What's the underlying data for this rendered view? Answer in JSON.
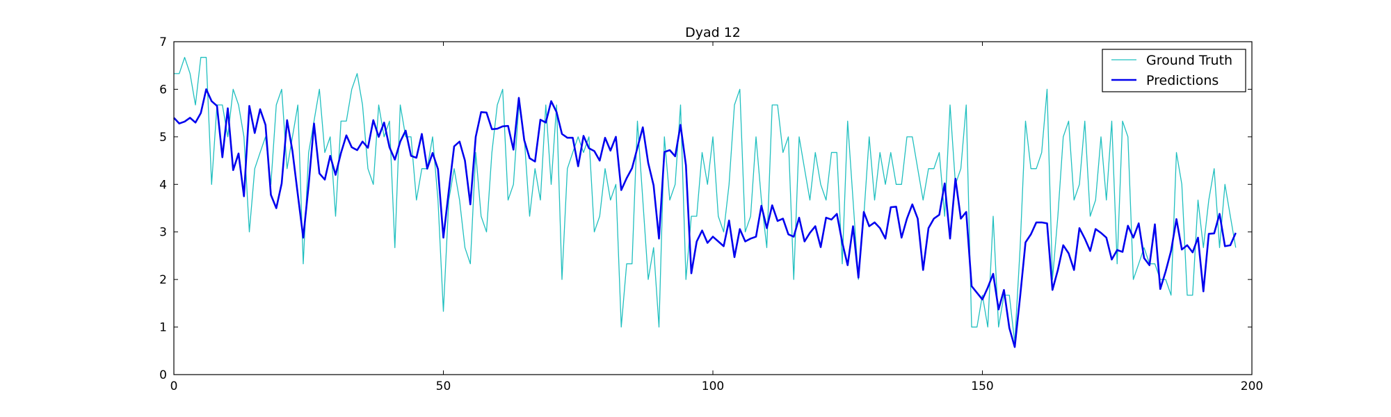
{
  "chart_data": {
    "type": "line",
    "title": "Dyad 12",
    "xlabel": "",
    "ylabel": "",
    "xlim": [
      0,
      200
    ],
    "ylim": [
      0,
      7
    ],
    "xticks": [
      0,
      50,
      100,
      150,
      200
    ],
    "yticks": [
      0,
      1,
      2,
      3,
      4,
      5,
      6,
      7
    ],
    "grid": false,
    "legend_position": "top-right",
    "series": [
      {
        "name": "Ground Truth",
        "color": "#1fbfbf",
        "line_width": "thin",
        "values": [
          6.33,
          6.33,
          6.67,
          6.33,
          5.67,
          6.67,
          6.67,
          4.0,
          5.67,
          5.67,
          5.0,
          6.0,
          5.67,
          5.0,
          3.0,
          4.33,
          4.67,
          5.0,
          4.0,
          5.67,
          6.0,
          4.33,
          5.0,
          5.67,
          2.33,
          4.67,
          5.33,
          6.0,
          4.67,
          5.0,
          3.33,
          5.33,
          5.33,
          6.0,
          6.33,
          5.67,
          4.33,
          4.0,
          5.67,
          5.0,
          5.33,
          2.67,
          5.67,
          5.0,
          5.0,
          3.67,
          4.33,
          4.33,
          5.0,
          3.67,
          1.33,
          3.67,
          4.33,
          3.67,
          2.67,
          2.33,
          4.67,
          3.33,
          3.0,
          4.67,
          5.67,
          6.0,
          3.67,
          4.0,
          5.67,
          5.0,
          3.33,
          4.33,
          3.67,
          5.67,
          4.0,
          5.67,
          2.0,
          4.33,
          4.67,
          5.0,
          4.67,
          5.0,
          3.0,
          3.33,
          4.33,
          3.67,
          4.0,
          1.0,
          2.33,
          2.33,
          5.33,
          3.67,
          2.0,
          2.67,
          1.0,
          5.0,
          3.67,
          4.0,
          5.67,
          2.0,
          3.33,
          3.33,
          4.67,
          4.0,
          5.0,
          3.33,
          3.0,
          4.0,
          5.67,
          6.0,
          3.0,
          3.33,
          5.0,
          3.67,
          2.67,
          5.67,
          5.67,
          4.67,
          5.0,
          2.0,
          5.0,
          4.33,
          3.67,
          4.67,
          4.0,
          3.67,
          4.67,
          4.67,
          2.33,
          5.33,
          3.67,
          2.0,
          3.33,
          5.0,
          3.67,
          4.67,
          4.0,
          4.67,
          4.0,
          4.0,
          5.0,
          5.0,
          4.33,
          3.67,
          4.33,
          4.33,
          4.67,
          3.33,
          5.67,
          4.0,
          4.33,
          5.67,
          1.0,
          1.0,
          1.67,
          1.0,
          3.33,
          1.0,
          1.67,
          1.67,
          0.67,
          2.67,
          5.33,
          4.33,
          4.33,
          4.67,
          6.0,
          2.0,
          3.33,
          5.0,
          5.33,
          3.67,
          4.0,
          5.33,
          3.33,
          3.67,
          5.0,
          3.67,
          5.33,
          2.33,
          5.33,
          5.0,
          2.0,
          2.33,
          2.67,
          2.33,
          2.33,
          2.0,
          2.0,
          1.67,
          4.67,
          4.0,
          1.67,
          1.67,
          3.67,
          2.67,
          3.67,
          4.33,
          2.67,
          4.0,
          3.33,
          2.67
        ]
      },
      {
        "name": "Predictions",
        "color": "#0000ee",
        "line_width": "thick",
        "values": [
          5.4,
          5.28,
          5.32,
          5.4,
          5.3,
          5.5,
          6.0,
          5.75,
          5.65,
          4.57,
          5.6,
          4.3,
          4.65,
          3.75,
          5.65,
          5.08,
          5.58,
          5.25,
          3.78,
          3.5,
          4.02,
          5.35,
          4.7,
          3.78,
          2.88,
          3.98,
          5.28,
          4.23,
          4.1,
          4.6,
          4.2,
          4.66,
          5.03,
          4.78,
          4.72,
          4.9,
          4.77,
          5.35,
          5.0,
          5.3,
          4.78,
          4.52,
          4.9,
          5.13,
          4.6,
          4.56,
          5.06,
          4.33,
          4.66,
          4.32,
          2.88,
          3.86,
          4.8,
          4.9,
          4.5,
          3.58,
          5.0,
          5.52,
          5.51,
          5.16,
          5.17,
          5.22,
          5.23,
          4.73,
          5.82,
          4.93,
          4.55,
          4.48,
          5.36,
          5.3,
          5.75,
          5.52,
          5.06,
          4.98,
          4.98,
          4.38,
          5.02,
          4.76,
          4.7,
          4.5,
          4.98,
          4.71,
          5.0,
          3.88,
          4.13,
          4.34,
          4.77,
          5.2,
          4.45,
          3.98,
          2.86,
          4.68,
          4.72,
          4.59,
          5.25,
          4.4,
          2.13,
          2.8,
          3.03,
          2.77,
          2.9,
          2.8,
          2.7,
          3.24,
          2.47,
          3.06,
          2.8,
          2.86,
          2.9,
          3.55,
          3.08,
          3.56,
          3.23,
          3.28,
          2.95,
          2.9,
          3.3,
          2.8,
          2.98,
          3.12,
          2.68,
          3.3,
          3.26,
          3.38,
          2.78,
          2.3,
          3.12,
          2.04,
          3.42,
          3.12,
          3.2,
          3.08,
          2.86,
          3.52,
          3.53,
          2.88,
          3.28,
          3.58,
          3.28,
          2.2,
          3.08,
          3.28,
          3.36,
          4.02,
          2.86,
          4.12,
          3.28,
          3.42,
          1.86,
          1.72,
          1.58,
          1.83,
          2.12,
          1.37,
          1.78,
          0.98,
          0.58,
          1.64,
          2.78,
          2.95,
          3.2,
          3.2,
          3.18,
          1.78,
          2.2,
          2.72,
          2.55,
          2.2,
          3.08,
          2.86,
          2.6,
          3.06,
          2.98,
          2.88,
          2.42,
          2.62,
          2.58,
          3.13,
          2.88,
          3.18,
          2.45,
          2.3,
          3.16,
          1.8,
          2.17,
          2.6,
          3.27,
          2.63,
          2.72,
          2.57,
          2.88,
          1.75,
          2.96,
          2.97,
          3.38,
          2.7,
          2.72,
          2.98
        ]
      }
    ]
  }
}
